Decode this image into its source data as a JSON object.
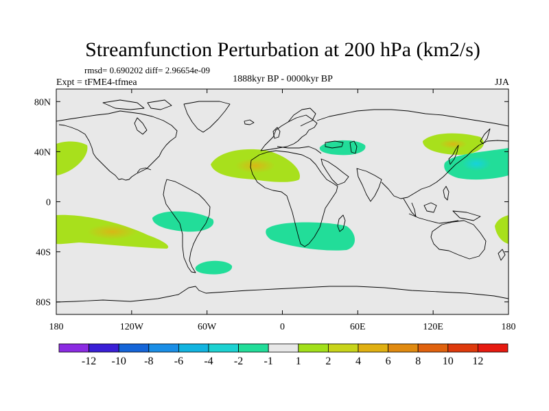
{
  "title": "Streamfunction Perturbation at 200 hPa (km2/s)",
  "stats": "rmsd= 0.690202 diff= 2.96654e-09",
  "experiment": "Expt = tFME4-tfmea",
  "period": "1888kyr BP - 0000kyr BP",
  "season": "JJA",
  "chart_data": {
    "type": "heatmap",
    "variable": "Streamfunction perturbation",
    "level": "200 hPa",
    "units": "km2/s",
    "x_range": [
      -180,
      180
    ],
    "y_range": [
      -90,
      90
    ],
    "x_tick_labels": [
      {
        "value": -180,
        "label": "180"
      },
      {
        "value": -120,
        "label": "120W"
      },
      {
        "value": -60,
        "label": "60W"
      },
      {
        "value": 0,
        "label": "0"
      },
      {
        "value": 60,
        "label": "60E"
      },
      {
        "value": 120,
        "label": "120E"
      },
      {
        "value": 180,
        "label": "180"
      }
    ],
    "y_tick_labels": [
      {
        "value": 80,
        "label": "80N"
      },
      {
        "value": 40,
        "label": "40N"
      },
      {
        "value": 0,
        "label": "0"
      },
      {
        "value": -40,
        "label": "40S"
      },
      {
        "value": -80,
        "label": "80S"
      }
    ],
    "colorbar": {
      "levels": [
        -12,
        -10,
        -8,
        -6,
        -4,
        -2,
        -1,
        1,
        2,
        4,
        6,
        8,
        10,
        12
      ],
      "colors": [
        "#8b2be2",
        "#3a1fd6",
        "#1565d8",
        "#1a8ee6",
        "#12b4e0",
        "#1cd2d2",
        "#22dd99",
        "#e8e8e8",
        "#a2e01a",
        "#c8d41a",
        "#e0b012",
        "#e08a10",
        "#e0620e",
        "#de3a0c",
        "#e61a10"
      ]
    },
    "anomalies": [
      {
        "name": "north-pacific-east",
        "lon": -170,
        "lat": 37,
        "value": 1.5
      },
      {
        "name": "south-pacific-east",
        "lon": -155,
        "lat": -25,
        "value": 2.2
      },
      {
        "name": "north-atlantic",
        "lon": -25,
        "lat": 28,
        "value": 2.3
      },
      {
        "name": "south-america-east",
        "lon": -90,
        "lat": -15,
        "value": -1.5
      },
      {
        "name": "southern-ocean-atlantic",
        "lon": -52,
        "lat": -50,
        "value": -1.5
      },
      {
        "name": "mediterranean",
        "lon": 32,
        "lat": 43,
        "value": -1.5
      },
      {
        "name": "southern-africa",
        "lon": 25,
        "lat": -28,
        "value": -1.5
      },
      {
        "name": "east-siberia",
        "lon": 140,
        "lat": 48,
        "value": 2.5
      },
      {
        "name": "north-west-pacific",
        "lon": 160,
        "lat": 28,
        "value": -2.5
      },
      {
        "name": "south-west-pacific",
        "lon": 175,
        "lat": -15,
        "value": 1.5
      }
    ]
  }
}
